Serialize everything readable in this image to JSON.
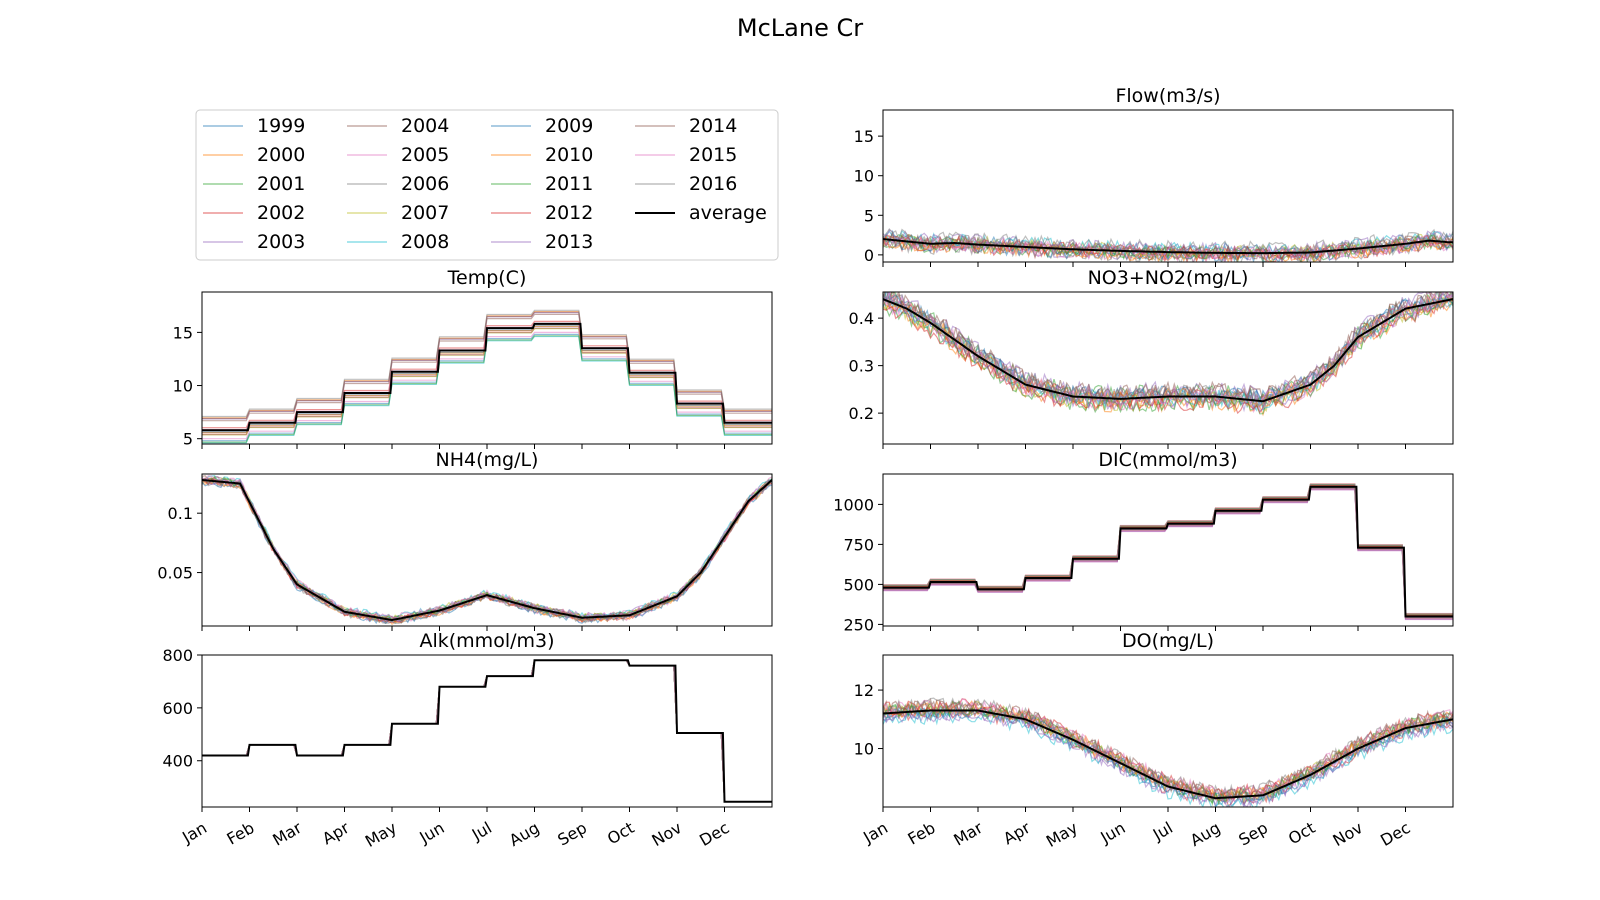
{
  "figure": {
    "title": "McLane Cr",
    "months": [
      "Jan",
      "Feb",
      "Mar",
      "Apr",
      "May",
      "Jun",
      "Jul",
      "Aug",
      "Sep",
      "Oct",
      "Nov",
      "Dec"
    ]
  },
  "legend": {
    "entries": [
      {
        "label": "1999",
        "color": "#1f77b4"
      },
      {
        "label": "2000",
        "color": "#ff7f0e"
      },
      {
        "label": "2001",
        "color": "#2ca02c"
      },
      {
        "label": "2002",
        "color": "#d62728"
      },
      {
        "label": "2003",
        "color": "#9467bd"
      },
      {
        "label": "2004",
        "color": "#8c564b"
      },
      {
        "label": "2005",
        "color": "#e377c2"
      },
      {
        "label": "2006",
        "color": "#7f7f7f"
      },
      {
        "label": "2007",
        "color": "#bcbd22"
      },
      {
        "label": "2008",
        "color": "#17becf"
      },
      {
        "label": "2009",
        "color": "#1f77b4"
      },
      {
        "label": "2010",
        "color": "#ff7f0e"
      },
      {
        "label": "2011",
        "color": "#2ca02c"
      },
      {
        "label": "2012",
        "color": "#d62728"
      },
      {
        "label": "2013",
        "color": "#9467bd"
      },
      {
        "label": "2014",
        "color": "#8c564b"
      },
      {
        "label": "2015",
        "color": "#e377c2"
      },
      {
        "label": "2016",
        "color": "#7f7f7f"
      },
      {
        "label": "average",
        "color": "#000000"
      }
    ]
  },
  "chart_data": [
    {
      "type": "line",
      "title": "Flow(m3/s)",
      "x_categories": [
        "Jan",
        "Feb",
        "Mar",
        "Apr",
        "May",
        "Jun",
        "Jul",
        "Aug",
        "Sep",
        "Oct",
        "Nov",
        "Dec"
      ],
      "ylim": [
        -0.9,
        18.3
      ],
      "yticks": [
        0,
        5,
        10,
        15
      ],
      "average": {
        "months": [
          0,
          0.5,
          1,
          1.5,
          2,
          3,
          4,
          5,
          6,
          7,
          8,
          9,
          10,
          10.5,
          11,
          11.5,
          11.9
        ],
        "values": [
          2.0,
          1.7,
          1.4,
          1.5,
          1.3,
          1.0,
          0.7,
          0.5,
          0.35,
          0.25,
          0.22,
          0.3,
          0.8,
          1.1,
          1.4,
          1.8,
          1.6
        ]
      },
      "spread": 1.2
    },
    {
      "type": "line",
      "title": "Temp(C)",
      "x_categories": [
        "Jan",
        "Feb",
        "Mar",
        "Apr",
        "May",
        "Jun",
        "Jul",
        "Aug",
        "Sep",
        "Oct",
        "Nov",
        "Dec"
      ],
      "ylim": [
        4.5,
        18.8
      ],
      "yticks": [
        5,
        10,
        15
      ],
      "step": true,
      "average": {
        "months": [
          0,
          1,
          2,
          3,
          4,
          5,
          6,
          7,
          8,
          9,
          10,
          11
        ],
        "values": [
          5.8,
          6.5,
          7.5,
          9.3,
          11.3,
          13.3,
          15.4,
          15.8,
          13.5,
          11.2,
          8.3,
          6.5
        ]
      },
      "spread": 1.3
    },
    {
      "type": "line",
      "title": "NO3+NO2(mg/L)",
      "x_categories": [
        "Jan",
        "Feb",
        "Mar",
        "Apr",
        "May",
        "Jun",
        "Jul",
        "Aug",
        "Sep",
        "Oct",
        "Nov",
        "Dec"
      ],
      "ylim": [
        0.135,
        0.455
      ],
      "yticks": [
        0.2,
        0.3,
        0.4
      ],
      "average": {
        "months": [
          0,
          0.5,
          1,
          2,
          3,
          4,
          5,
          6,
          7,
          8,
          9,
          9.5,
          10,
          11,
          11.5,
          12
        ],
        "values": [
          0.44,
          0.42,
          0.39,
          0.32,
          0.26,
          0.235,
          0.23,
          0.235,
          0.235,
          0.225,
          0.26,
          0.3,
          0.36,
          0.42,
          0.43,
          0.44
        ]
      },
      "spread": 0.025
    },
    {
      "type": "line",
      "title": "NH4(mg/L)",
      "x_categories": [
        "Jan",
        "Feb",
        "Mar",
        "Apr",
        "May",
        "Jun",
        "Jul",
        "Aug",
        "Sep",
        "Oct",
        "Nov",
        "Dec"
      ],
      "ylim": [
        0.005,
        0.133
      ],
      "yticks": [
        0.05,
        0.1
      ],
      "average": {
        "months": [
          0,
          0.8,
          1.5,
          2,
          3,
          4,
          5,
          6,
          7,
          8,
          9,
          10,
          10.5,
          11,
          11.5,
          12
        ],
        "values": [
          0.128,
          0.125,
          0.07,
          0.04,
          0.017,
          0.01,
          0.018,
          0.031,
          0.02,
          0.012,
          0.014,
          0.03,
          0.05,
          0.08,
          0.11,
          0.128
        ]
      },
      "spread": 0.004
    },
    {
      "type": "line",
      "title": "DIC(mmol/m3)",
      "x_categories": [
        "Jan",
        "Feb",
        "Mar",
        "Apr",
        "May",
        "Jun",
        "Jul",
        "Aug",
        "Sep",
        "Oct",
        "Nov",
        "Dec"
      ],
      "ylim": [
        240,
        1190
      ],
      "yticks": [
        250,
        500,
        750,
        1000
      ],
      "step": true,
      "average": {
        "months": [
          0,
          1,
          2,
          3,
          4,
          5,
          6,
          7,
          8,
          9,
          10,
          11
        ],
        "values": [
          480,
          515,
          470,
          540,
          660,
          850,
          880,
          960,
          1030,
          1110,
          730,
          300
        ]
      },
      "spread": 20
    },
    {
      "type": "line",
      "title": "Alk(mmol/m3)",
      "x_categories": [
        "Jan",
        "Feb",
        "Mar",
        "Apr",
        "May",
        "Jun",
        "Jul",
        "Aug",
        "Sep",
        "Oct",
        "Nov",
        "Dec"
      ],
      "ylim": [
        225,
        800
      ],
      "yticks": [
        400,
        600,
        800
      ],
      "step": true,
      "average": {
        "months": [
          0,
          1,
          2,
          3,
          4,
          5,
          6,
          7,
          8,
          9,
          10,
          11
        ],
        "values": [
          420,
          460,
          420,
          460,
          540,
          680,
          720,
          780,
          780,
          760,
          505,
          245
        ]
      },
      "spread": 0
    },
    {
      "type": "line",
      "title": "DO(mg/L)",
      "x_categories": [
        "Jan",
        "Feb",
        "Mar",
        "Apr",
        "May",
        "Jun",
        "Jul",
        "Aug",
        "Sep",
        "Oct",
        "Nov",
        "Dec"
      ],
      "ylim": [
        8.0,
        13.2
      ],
      "yticks": [
        10,
        12
      ],
      "average": {
        "months": [
          0,
          1,
          2,
          3,
          4,
          5,
          6,
          7,
          8,
          9,
          10,
          11,
          12
        ],
        "values": [
          11.2,
          11.3,
          11.3,
          11.0,
          10.3,
          9.5,
          8.7,
          8.3,
          8.4,
          9.1,
          10.0,
          10.7,
          11.0
        ]
      },
      "spread": 0.35
    }
  ]
}
